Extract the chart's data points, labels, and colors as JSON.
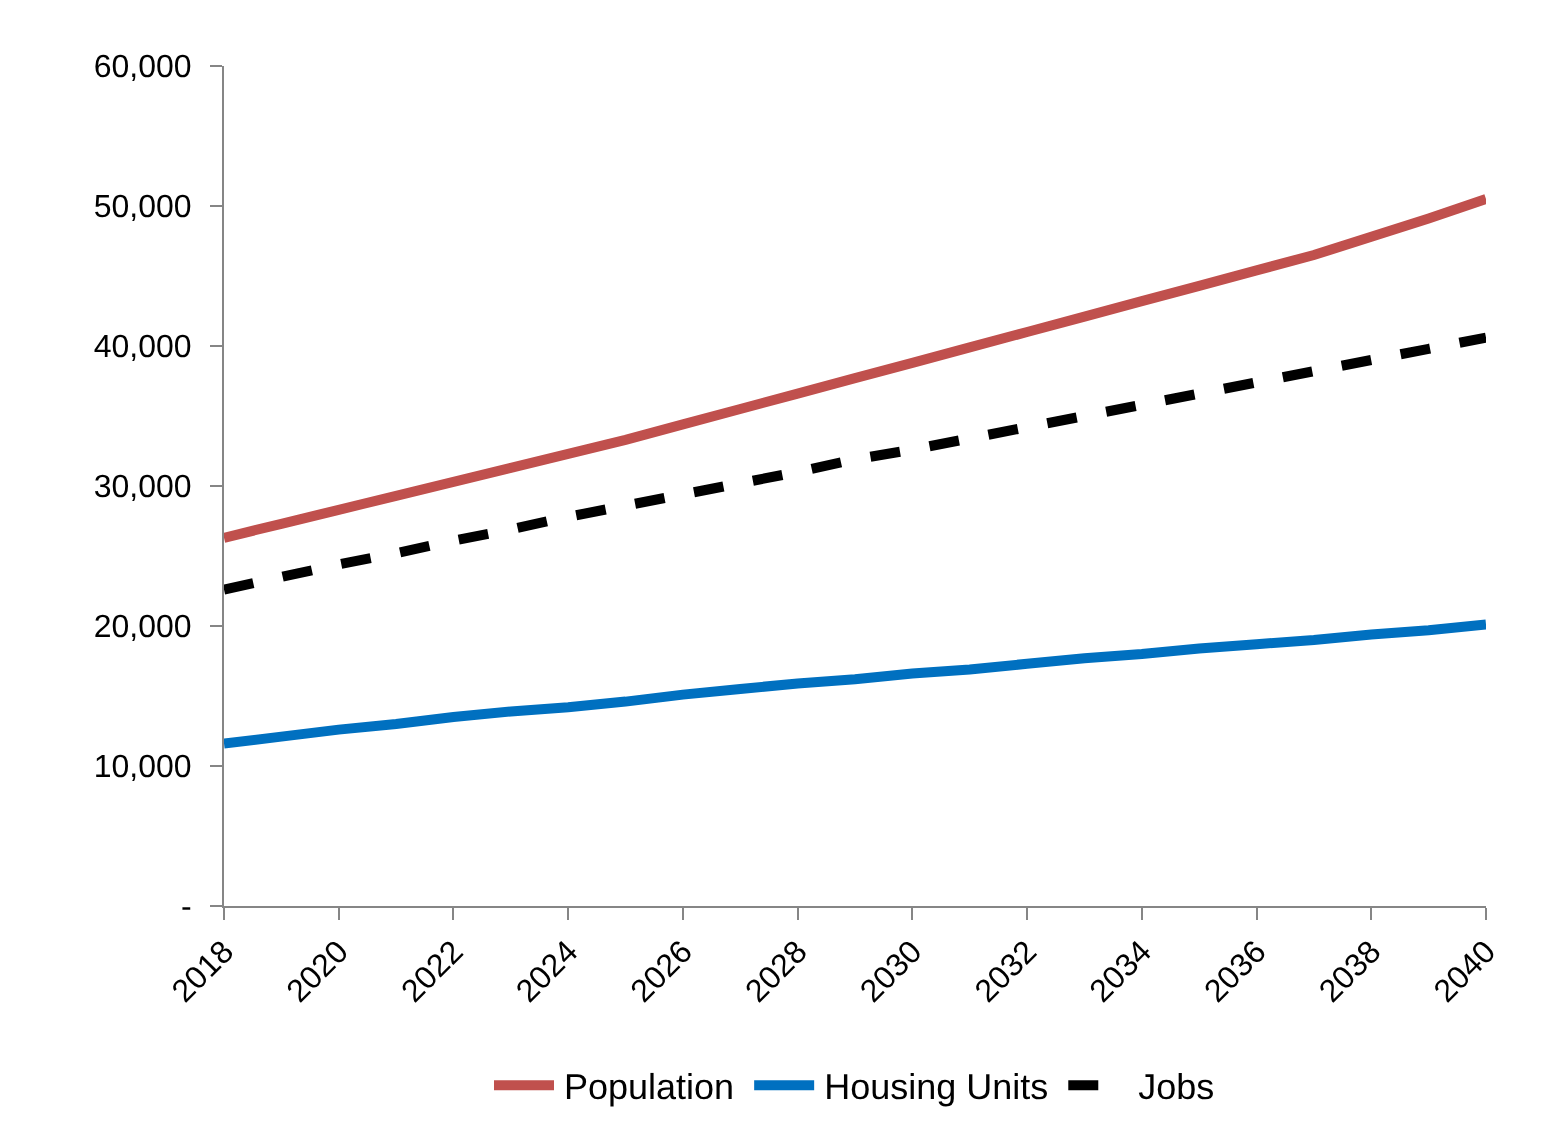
{
  "chart_data": {
    "type": "line",
    "x": [
      2018,
      2019,
      2020,
      2021,
      2022,
      2023,
      2024,
      2025,
      2026,
      2027,
      2028,
      2029,
      2030,
      2031,
      2032,
      2033,
      2034,
      2035,
      2036,
      2037,
      2038,
      2039,
      2040
    ],
    "series": [
      {
        "name": "Population",
        "color": "#c0504d",
        "values": [
          26300,
          27300,
          28300,
          29300,
          30300,
          31300,
          32300,
          33300,
          34400,
          35500,
          36600,
          37700,
          38800,
          39900,
          41000,
          42100,
          43200,
          44300,
          45400,
          46500,
          47800,
          49100,
          50500
        ]
      },
      {
        "name": "Housing Units",
        "color": "#0070c0",
        "values": [
          11600,
          12100,
          12600,
          13000,
          13500,
          13900,
          14200,
          14600,
          15100,
          15500,
          15900,
          16200,
          16600,
          16900,
          17300,
          17700,
          18000,
          18400,
          18700,
          19000,
          19400,
          19700,
          20100
        ]
      },
      {
        "name": "Jobs",
        "color": "#000000",
        "values": [
          22600,
          23500,
          24400,
          25200,
          26100,
          26900,
          27800,
          28600,
          29400,
          30200,
          31000,
          31900,
          32600,
          33400,
          34200,
          35000,
          35800,
          36600,
          37400,
          38200,
          39000,
          39800,
          40600
        ],
        "line_style": "dashed"
      }
    ],
    "xlim": [
      2018,
      2040
    ],
    "xticks": [
      2018,
      2020,
      2022,
      2024,
      2026,
      2028,
      2030,
      2032,
      2034,
      2036,
      2038,
      2040
    ],
    "ylim": [
      0,
      60000
    ],
    "yticks": [
      {
        "value": 0,
        "label": "-"
      },
      {
        "value": 10000,
        "label": "10,000"
      },
      {
        "value": 20000,
        "label": "20,000"
      },
      {
        "value": 30000,
        "label": "30,000"
      },
      {
        "value": 40000,
        "label": "40,000"
      },
      {
        "value": 50000,
        "label": "50,000"
      },
      {
        "value": 60000,
        "label": "60,000"
      }
    ],
    "grid": false,
    "legend": "bottom",
    "marker": "none",
    "line_style": "solid"
  }
}
